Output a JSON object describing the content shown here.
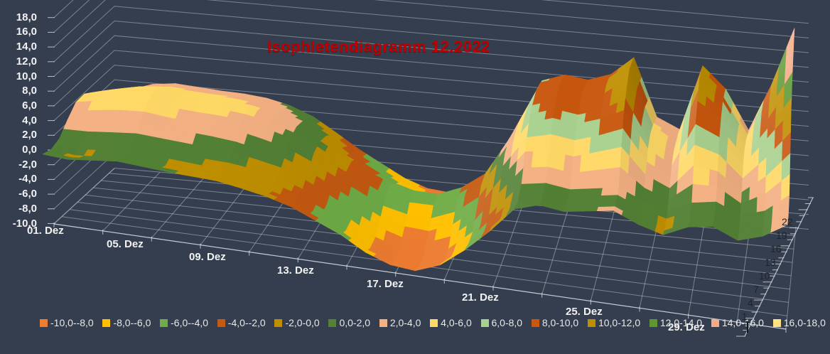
{
  "chart_data": {
    "type": "surface",
    "title": "Isophletendiagramm 12.2022",
    "title_color": "#C00000",
    "value_axis": {
      "min": -10,
      "max": 18,
      "step": 2,
      "tick_labels": [
        "18,0",
        "16,0",
        "14,0",
        "12,0",
        "10,0",
        "8,0",
        "6,0",
        "4,0",
        "2,0",
        "0,0",
        "-2,0",
        "-4,0",
        "-6,0",
        "-8,0",
        "-10,0"
      ]
    },
    "category_axis": {
      "unit": "day of December 2022",
      "labels": [
        "01. Dez",
        "05. Dez",
        "09. Dez",
        "13. Dez",
        "17. Dez",
        "21. Dez",
        "25. Dez",
        "29. Dez"
      ]
    },
    "depth_axis": {
      "unit": "hour of day",
      "tick_labels": [
        "22",
        "19",
        "16",
        "13",
        "10",
        "7",
        "4",
        "1"
      ]
    },
    "legend": [
      {
        "label": "-10,0--8,0",
        "color": "#ED7D31"
      },
      {
        "label": "-8,0--6,0",
        "color": "#FFC000"
      },
      {
        "label": "-6,0--4,0",
        "color": "#70AD47"
      },
      {
        "label": "-4,0--2,0",
        "color": "#C55A11"
      },
      {
        "label": "-2,0-0,0",
        "color": "#BF8F00"
      },
      {
        "label": "0,0-2,0",
        "color": "#538135"
      },
      {
        "label": "2,0-4,0",
        "color": "#F4B183"
      },
      {
        "label": "4,0-6,0",
        "color": "#FFD966"
      },
      {
        "label": "6,0-8,0",
        "color": "#A9D18E"
      },
      {
        "label": "8,0-10,0",
        "color": "#C9570E"
      },
      {
        "label": "10,0-12,0",
        "color": "#BF8F00"
      },
      {
        "label": "12,0-14,0",
        "color": "#5E9732"
      },
      {
        "label": "14,0-16,0",
        "color": "#F5AB84"
      },
      {
        "label": "16,0-18,0",
        "color": "#FFE380"
      }
    ],
    "grid": {
      "days": [
        1,
        2,
        3,
        4,
        5,
        6,
        7,
        8,
        9,
        10,
        11,
        12,
        13,
        14,
        15,
        16,
        17,
        18,
        19,
        20,
        21,
        22,
        23,
        24,
        25,
        26,
        27,
        28,
        29,
        30,
        31
      ],
      "hours": [
        1,
        4,
        7,
        10,
        13,
        16,
        19,
        22,
        24
      ],
      "values": [
        [
          0.5,
          0.2,
          0.8,
          2.5,
          4.0,
          4.2,
          3.5,
          2.5,
          2.0
        ],
        [
          0.2,
          -0.2,
          0.5,
          2.8,
          4.5,
          5.0,
          4.2,
          3.0,
          2.5
        ],
        [
          0.5,
          0.0,
          0.8,
          3.0,
          5.0,
          5.5,
          4.8,
          3.8,
          3.5
        ],
        [
          0.8,
          0.2,
          1.0,
          3.2,
          5.0,
          5.5,
          5.0,
          4.0,
          3.8
        ],
        [
          0.5,
          0.0,
          0.8,
          2.8,
          4.5,
          5.0,
          4.6,
          3.8,
          3.5
        ],
        [
          0.2,
          -0.2,
          0.5,
          2.5,
          4.2,
          4.8,
          4.4,
          3.5,
          3.2
        ],
        [
          0.0,
          -0.5,
          0.2,
          2.2,
          4.0,
          4.6,
          4.2,
          3.4,
          3.0
        ],
        [
          -0.2,
          -0.8,
          0.0,
          1.8,
          3.6,
          4.2,
          3.8,
          3.0,
          2.6
        ],
        [
          -0.8,
          -1.2,
          -0.5,
          1.0,
          2.8,
          3.4,
          3.0,
          2.2,
          1.8
        ],
        [
          -1.5,
          -2.0,
          -1.2,
          0.2,
          1.8,
          2.2,
          1.8,
          1.0,
          0.5
        ],
        [
          -2.5,
          -3.0,
          -2.5,
          -1.2,
          0.2,
          0.5,
          0.0,
          -1.0,
          -1.5
        ],
        [
          -4.0,
          -4.5,
          -4.2,
          -3.0,
          -1.6,
          -1.4,
          -2.2,
          -3.2,
          -3.6
        ],
        [
          -5.5,
          -6.2,
          -6.0,
          -4.8,
          -3.2,
          -3.0,
          -4.0,
          -5.0,
          -5.4
        ],
        [
          -7.5,
          -8.2,
          -8.0,
          -6.5,
          -4.8,
          -4.5,
          -5.8,
          -6.8,
          -7.2
        ],
        [
          -8.8,
          -9.5,
          -9.2,
          -7.5,
          -5.5,
          -5.2,
          -6.8,
          -8.0,
          -8.4
        ],
        [
          -9.2,
          -9.9,
          -9.6,
          -7.8,
          -5.6,
          -5.4,
          -7.0,
          -8.4,
          -8.8
        ],
        [
          -8.0,
          -8.8,
          -8.5,
          -6.5,
          -4.5,
          -4.2,
          -6.0,
          -7.2,
          -7.8
        ],
        [
          -5.5,
          -6.0,
          -5.8,
          -4.0,
          -2.2,
          -2.0,
          -3.5,
          -4.8,
          -5.2
        ],
        [
          -2.5,
          -2.8,
          -2.0,
          0.5,
          2.5,
          3.0,
          2.5,
          1.5,
          1.0
        ],
        [
          1.0,
          0.5,
          1.5,
          4.5,
          7.0,
          8.0,
          8.5,
          8.0,
          7.5
        ],
        [
          2.0,
          1.5,
          2.0,
          5.0,
          8.0,
          9.0,
          9.5,
          9.0,
          8.5
        ],
        [
          1.5,
          1.0,
          1.5,
          4.5,
          7.5,
          8.5,
          9.0,
          8.5,
          8.0
        ],
        [
          2.0,
          1.5,
          2.0,
          5.5,
          8.5,
          9.5,
          10.0,
          9.5,
          9.0
        ],
        [
          2.5,
          2.0,
          2.5,
          6.5,
          10.0,
          11.5,
          12.5,
          12.0,
          11.5
        ],
        [
          1.0,
          0.5,
          1.0,
          3.0,
          5.0,
          5.5,
          5.0,
          4.0,
          3.5
        ],
        [
          0.0,
          -0.5,
          0.0,
          1.5,
          3.0,
          3.5,
          3.0,
          2.5,
          2.0
        ],
        [
          1.5,
          1.0,
          1.5,
          5.0,
          9.0,
          10.5,
          12.0,
          11.5,
          11.0
        ],
        [
          2.0,
          1.5,
          2.0,
          4.5,
          7.5,
          8.5,
          9.0,
          8.5,
          8.0
        ],
        [
          0.5,
          0.0,
          0.5,
          2.0,
          4.0,
          4.5,
          4.0,
          3.0,
          2.5
        ],
        [
          1.5,
          1.0,
          1.5,
          4.5,
          8.0,
          9.0,
          10.0,
          9.5,
          9.0
        ],
        [
          3.5,
          3.0,
          4.0,
          8.0,
          12.0,
          14.0,
          15.5,
          16.5,
          17.0
        ]
      ]
    },
    "layout_hints": {
      "background": "#353E4E",
      "gridlines": "on",
      "legend_position": "bottom"
    }
  }
}
